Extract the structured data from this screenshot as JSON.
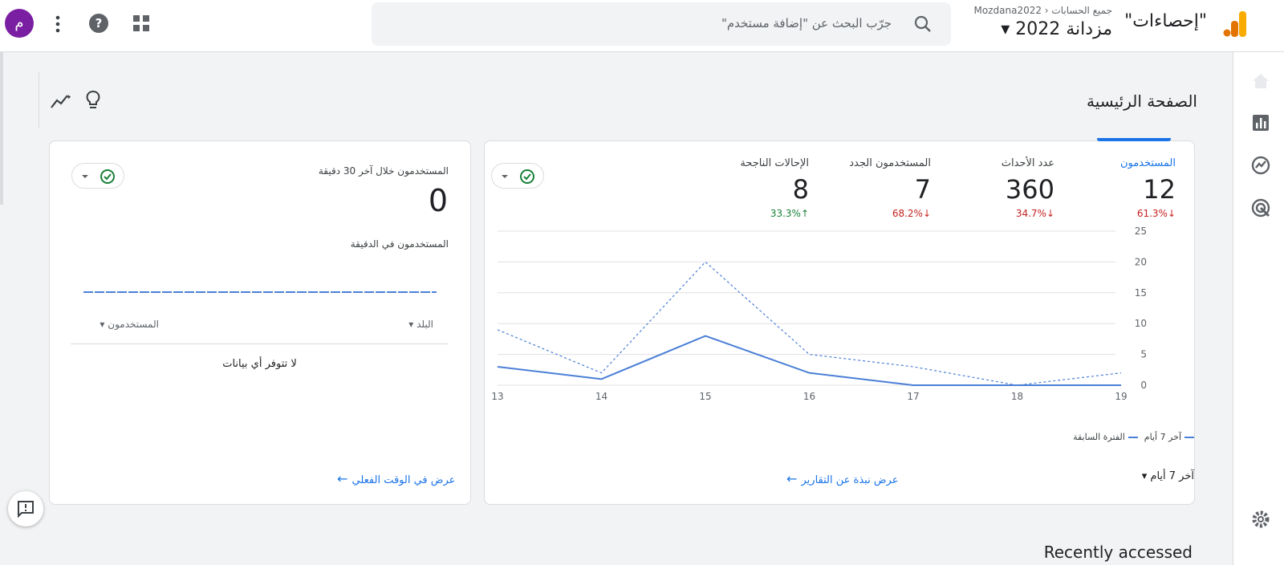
{
  "header": {
    "product": "\"إحصاءات\"",
    "breadcrumb": "جميع الحسابات",
    "account": "Mozdana2022",
    "property": "مزدانة 2022",
    "search_placeholder": "جرّب البحث عن \"إضافة مستخدم\"",
    "avatar": "م"
  },
  "page": {
    "title": "الصفحة الرئيسية",
    "recently_accessed": "Recently accessed"
  },
  "overview_card": {
    "metrics": [
      {
        "label": "المستخدمون",
        "value": "12",
        "change": "61.3%",
        "trend": "down"
      },
      {
        "label": "عدد الأحداث",
        "value": "360",
        "change": "34.7%",
        "trend": "down"
      },
      {
        "label": "المستخدمون الجدد",
        "value": "7",
        "change": "68.2%",
        "trend": "down"
      },
      {
        "label": "الإحالات الناجحة",
        "value": "8",
        "change": "33.3%",
        "trend": "up"
      }
    ],
    "date_range": "آخر 7 أيام",
    "link": "عرض نبذة عن التقارير"
  },
  "chart_data": {
    "type": "line",
    "categories": [
      "13",
      "14",
      "15",
      "16",
      "17",
      "18",
      "19"
    ],
    "series": [
      {
        "name": "آخر 7 أيام",
        "color": "#4a7fd6",
        "style": "solid",
        "values": [
          3,
          1,
          8,
          2,
          0,
          0,
          0
        ]
      },
      {
        "name": "الفترة السابقة",
        "color": "#4a7fd6",
        "style": "dashed",
        "values": [
          9,
          2,
          20,
          5,
          3,
          0,
          2
        ]
      }
    ],
    "ylim": [
      0,
      25
    ],
    "yticks": [
      0,
      5,
      10,
      15,
      20,
      25
    ],
    "grid": true
  },
  "realtime_card": {
    "title": "المستخدمون خلال آخر 30 دقيقة",
    "value": "0",
    "subtitle": "المستخدمون في الدقيقة",
    "dimension": "البلد",
    "metric": "المستخدمون",
    "empty": "لا تتوفر أي بيانات",
    "link": "عرض في الوقت الفعلي"
  }
}
